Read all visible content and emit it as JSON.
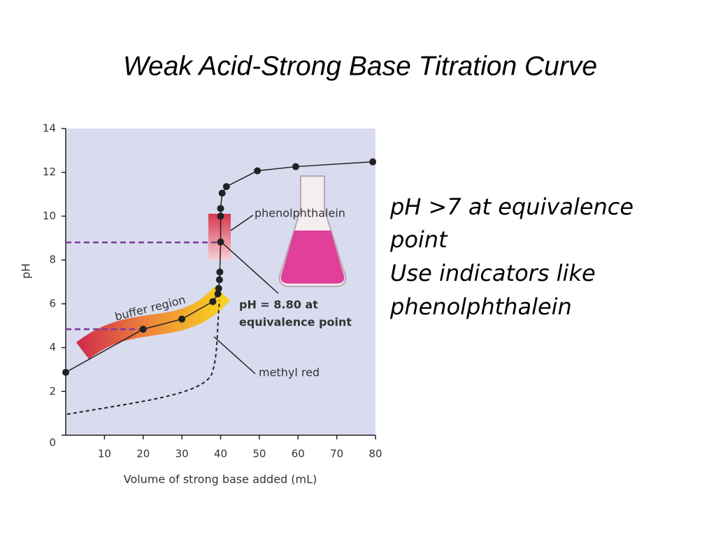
{
  "slide": {
    "title": "Weak Acid-Strong Base Titration Curve",
    "text": [
      "pH >7 at equivalence",
      "point",
      "Use indicators like",
      "phenolphthalein"
    ]
  },
  "chart_data": {
    "type": "line",
    "x_label": "Volume of strong base added (mL)",
    "y_label": "pH",
    "xlim": [
      0,
      80
    ],
    "ylim": [
      0,
      14
    ],
    "xticks": [
      10,
      20,
      30,
      40,
      50,
      60,
      70,
      80
    ],
    "yticks": [
      0,
      2,
      4,
      6,
      8,
      10,
      12,
      14
    ],
    "series": [
      {
        "color": "#222222",
        "x": [
          0,
          20,
          30,
          38,
          39.3,
          39.5,
          39.7,
          39.8,
          40,
          40,
          40,
          40.4,
          41.5,
          49.5,
          59.4,
          79.3
        ],
        "values": [
          2.87,
          4.84,
          5.3,
          6.1,
          6.45,
          6.7,
          7.1,
          7.45,
          8.82,
          10.0,
          10.35,
          11.05,
          11.35,
          12.07,
          12.26,
          12.48
        ]
      }
    ],
    "reference_lines": [
      {
        "y": 8.8,
        "x_end": 40,
        "color": "#7a3a9a"
      },
      {
        "y": 4.84,
        "x_end": 20,
        "color": "#7a3a9a"
      }
    ],
    "annotations": [
      {
        "text": [
          "phenolphthalein"
        ]
      },
      {
        "text": [
          "pH = 8.80 at",
          "equivalence point"
        ]
      },
      {
        "text": [
          "buffer region"
        ]
      },
      {
        "text": [
          "methyl red"
        ]
      }
    ]
  }
}
